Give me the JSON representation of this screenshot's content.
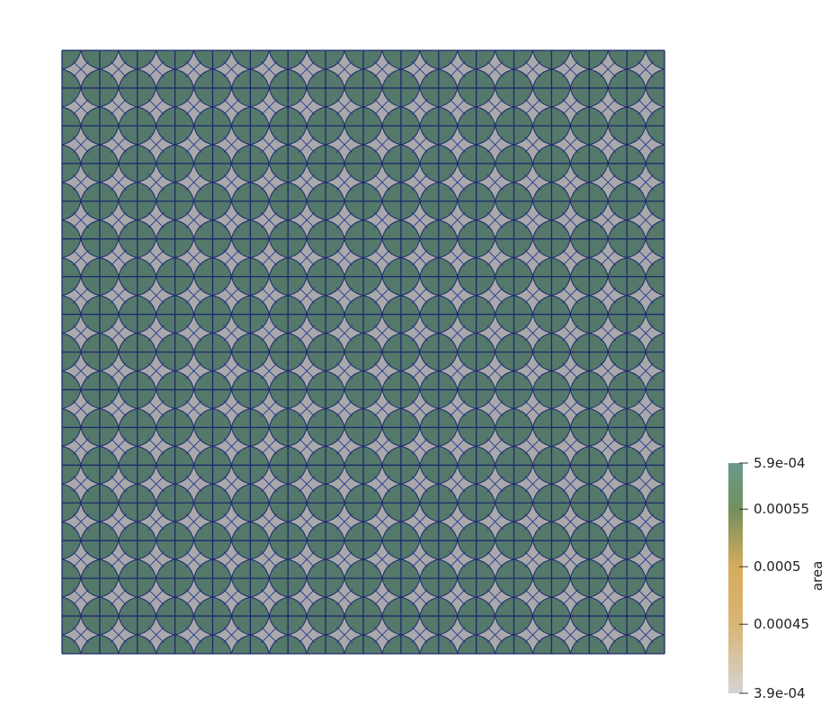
{
  "mesh": {
    "rows": 16,
    "cols": 16,
    "colors": {
      "cell_fill": "#54786a",
      "inner_fill": "#a9a9ab",
      "grid_line": "#1c2a6c",
      "inner_line": "#2a3590"
    }
  },
  "colorbar": {
    "title": "area",
    "min_label": "3.9e-04",
    "max_label": "5.9e-04",
    "range": [
      0.00039,
      0.00059
    ],
    "ticks": [
      {
        "value": 0.00059,
        "label": "5.9e-04"
      },
      {
        "value": 0.00055,
        "label": "0.00055"
      },
      {
        "value": 0.0005,
        "label": "0.0005"
      },
      {
        "value": 0.00045,
        "label": "0.00045"
      },
      {
        "value": 0.00039,
        "label": "3.9e-04"
      }
    ],
    "stops": [
      {
        "value": 0.00039,
        "color": "#d4d4d4"
      },
      {
        "value": 0.00045,
        "color": "#d9b574"
      },
      {
        "value": 0.0005,
        "color": "#d6ab5c"
      },
      {
        "value": 0.00055,
        "color": "#71905e"
      },
      {
        "value": 0.00059,
        "color": "#6a9a8a"
      }
    ]
  }
}
